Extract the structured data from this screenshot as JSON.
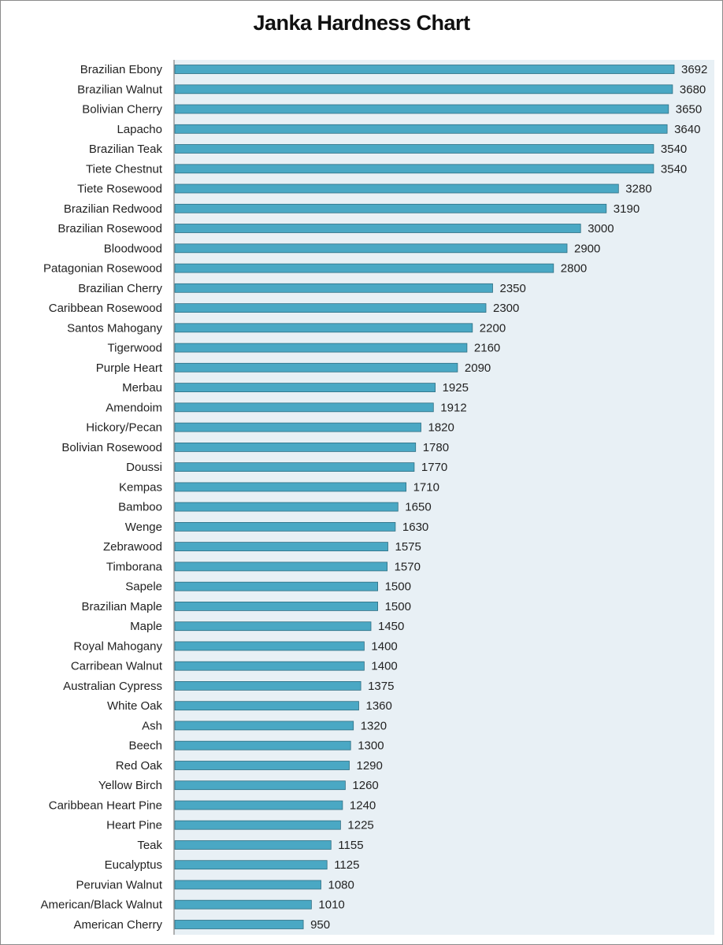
{
  "chart_data": {
    "type": "bar",
    "orientation": "horizontal",
    "title": "Janka Hardness Chart",
    "xlabel": "",
    "ylabel": "",
    "xlim": [
      0,
      4000
    ],
    "grid": false,
    "legend": "none",
    "colors": {
      "bar": "#4aa8c4",
      "bar_edge": "#2f6f83",
      "plot_background": "#e8f0f5",
      "axis": "#999999",
      "text": "#222222"
    },
    "categories": [
      "Brazilian Ebony",
      "Brazilian Walnut",
      "Bolivian Cherry",
      "Lapacho",
      "Brazilian Teak",
      "Tiete Chestnut",
      "Tiete Rosewood",
      "Brazilian Redwood",
      "Brazilian Rosewood",
      "Bloodwood",
      "Patagonian Rosewood",
      "Brazilian Cherry",
      "Caribbean Rosewood",
      "Santos Mahogany",
      "Tigerwood",
      "Purple Heart",
      "Merbau",
      "Amendoim",
      "Hickory/Pecan",
      "Bolivian Rosewood",
      "Doussi",
      "Kempas",
      "Bamboo",
      "Wenge",
      "Zebrawood",
      "Timborana",
      "Sapele",
      "Brazilian Maple",
      "Maple",
      "Royal Mahogany",
      "Carribean Walnut",
      "Australian Cypress",
      "White Oak",
      "Ash",
      "Beech",
      "Red Oak",
      "Yellow Birch",
      "Caribbean Heart Pine",
      "Heart Pine",
      "Teak",
      "Eucalyptus",
      "Peruvian Walnut",
      "American/Black Walnut",
      "American Cherry"
    ],
    "values": [
      3692,
      3680,
      3650,
      3640,
      3540,
      3540,
      3280,
      3190,
      3000,
      2900,
      2800,
      2350,
      2300,
      2200,
      2160,
      2090,
      1925,
      1912,
      1820,
      1780,
      1770,
      1710,
      1650,
      1630,
      1575,
      1570,
      1500,
      1500,
      1450,
      1400,
      1400,
      1375,
      1360,
      1320,
      1300,
      1290,
      1260,
      1240,
      1225,
      1155,
      1125,
      1080,
      1010,
      950
    ]
  }
}
